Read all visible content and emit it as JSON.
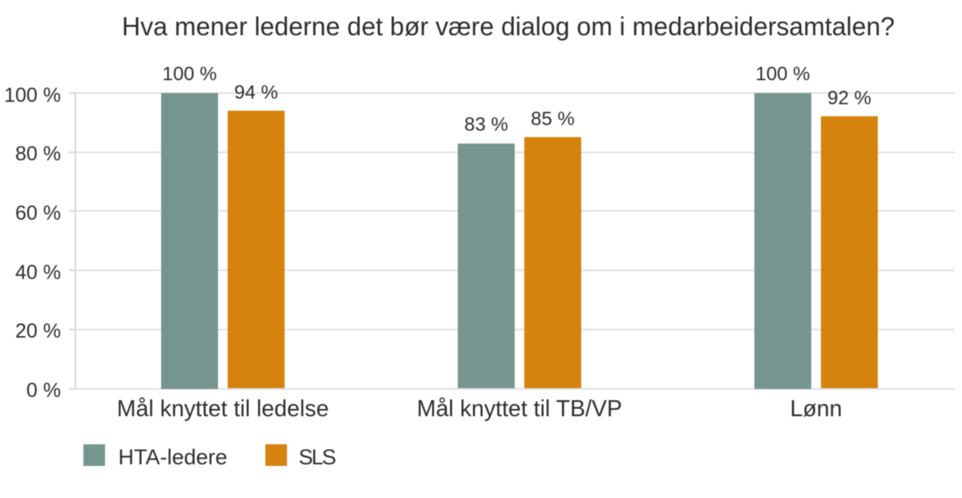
{
  "title": "Hva mener lederne det bør være dialog om i medarbeidersamtalen?",
  "chart_data": {
    "type": "bar",
    "categories": [
      "Mål knyttet til ledelse",
      "Mål knyttet til TB/VP",
      "Lønn"
    ],
    "series": [
      {
        "name": "HTA-ledere",
        "color": "#76958F",
        "values": [
          100,
          83,
          100
        ],
        "labels": [
          "100 %",
          "83 %",
          "100 %"
        ]
      },
      {
        "name": "SLS",
        "color": "#D5830E",
        "values": [
          94,
          85,
          92
        ],
        "labels": [
          "94 %",
          "85 %",
          "92 %"
        ]
      }
    ],
    "ytick_labels": [
      "0 %",
      "20 %",
      "40 %",
      "60 %",
      "80 %",
      "100 %"
    ],
    "ytick_values": [
      0,
      20,
      40,
      60,
      80,
      100
    ],
    "ylim": [
      0,
      100
    ],
    "grid": true,
    "legend_position": "bottom-left"
  },
  "colors": {
    "text": "#2e2e2e",
    "gridline": "#e1e1e1",
    "axis": "#d8d8d8",
    "background": "#ffffff"
  }
}
